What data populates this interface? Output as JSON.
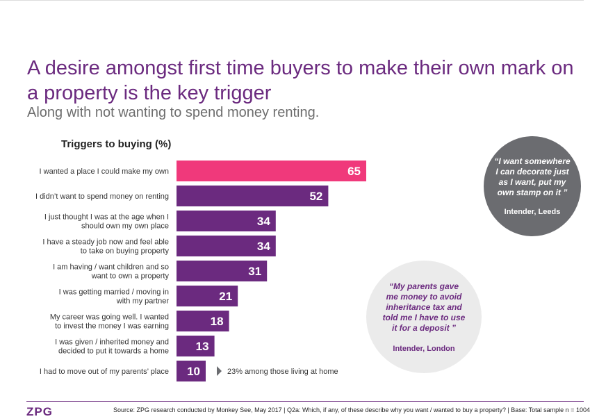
{
  "title": "A desire amongst first time buyers to make their own mark on a property is the key trigger",
  "subtitle": "Along with not wanting to spend money renting.",
  "colors": {
    "accent_purple": "#6b2a7f",
    "highlight_pink": "#f0397b",
    "bubble_grey": "#6b6c70"
  },
  "chart_data": {
    "type": "bar",
    "orientation": "horizontal",
    "title": "Triggers to buying (%)",
    "categories": [
      [
        "I wanted a place I could make my own"
      ],
      [
        "I didn’t want to spend money on renting"
      ],
      [
        "I just thought I was at the age when I",
        "should own my own place"
      ],
      [
        "I have a steady job now and feel able",
        "to take on buying property"
      ],
      [
        "I am having / want children and so",
        "want to own a property"
      ],
      [
        "I was getting married / moving in",
        "with my partner"
      ],
      [
        "My career was going well. I wanted",
        "to invest the money I was earning"
      ],
      [
        "I was given / inherited money and",
        "decided to put it towards a home"
      ],
      [
        "I had to move out of my parents’ place"
      ]
    ],
    "values": [
      65,
      52,
      34,
      34,
      31,
      21,
      18,
      13,
      10
    ],
    "highlight_index": 0,
    "annotation": {
      "index": 8,
      "text": "23% among those living at home"
    }
  },
  "quotes": [
    {
      "text": "“I want somewhere I can decorate just as I want, put my own stamp on it ”",
      "attribution": "Intender, Leeds"
    },
    {
      "text": "“My parents gave me money to avoid inheritance tax and told me I have to use it for a deposit ”",
      "attribution": "Intender, London"
    }
  ],
  "footer": {
    "logo": "ZPG",
    "source": "Source: ZPG research conducted by Monkey See, May 2017 | Q2a: Which, if any, of these describe why you want / wanted to buy a property? | Base: Total sample n = 1004"
  }
}
